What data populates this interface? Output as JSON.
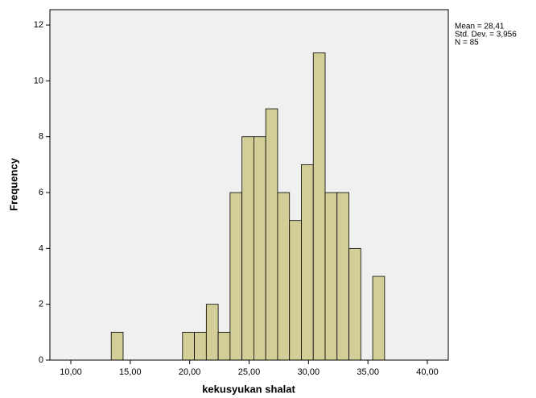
{
  "chart_data": {
    "type": "histogram",
    "x_label": "kekusyukan shalat",
    "y_label": "Frequency",
    "stats": [
      "Mean = 28,41",
      "Std. Dev. = 3,956",
      "N = 85"
    ],
    "bins": [
      13.4,
      14.4,
      15.4,
      16.4,
      17.4,
      18.4,
      19.4,
      20.4,
      21.4,
      22.4,
      23.4,
      24.4,
      25.4,
      26.4,
      27.4,
      28.4,
      29.4,
      30.4,
      31.4,
      32.4,
      33.4,
      34.4,
      35.4,
      36.4
    ],
    "values": [
      1,
      0,
      0,
      0,
      0,
      0,
      1,
      1,
      2,
      1,
      6,
      8,
      8,
      9,
      6,
      5,
      7,
      11,
      6,
      6,
      4,
      0,
      3
    ],
    "color": "#d3ce97",
    "xlim": [
      8.24,
      41.76
    ],
    "xticks": [
      {
        "value": 10,
        "label": "10,00"
      },
      {
        "value": 15,
        "label": "15,00"
      },
      {
        "value": 20,
        "label": "20,00"
      },
      {
        "value": 25,
        "label": "25,00"
      },
      {
        "value": 30,
        "label": "30,00"
      },
      {
        "value": 35,
        "label": "35,00"
      },
      {
        "value": 40,
        "label": "40,00"
      }
    ],
    "ylim": [
      0,
      12.55
    ],
    "yticks": [
      0,
      2,
      4,
      6,
      8,
      10,
      12
    ]
  }
}
